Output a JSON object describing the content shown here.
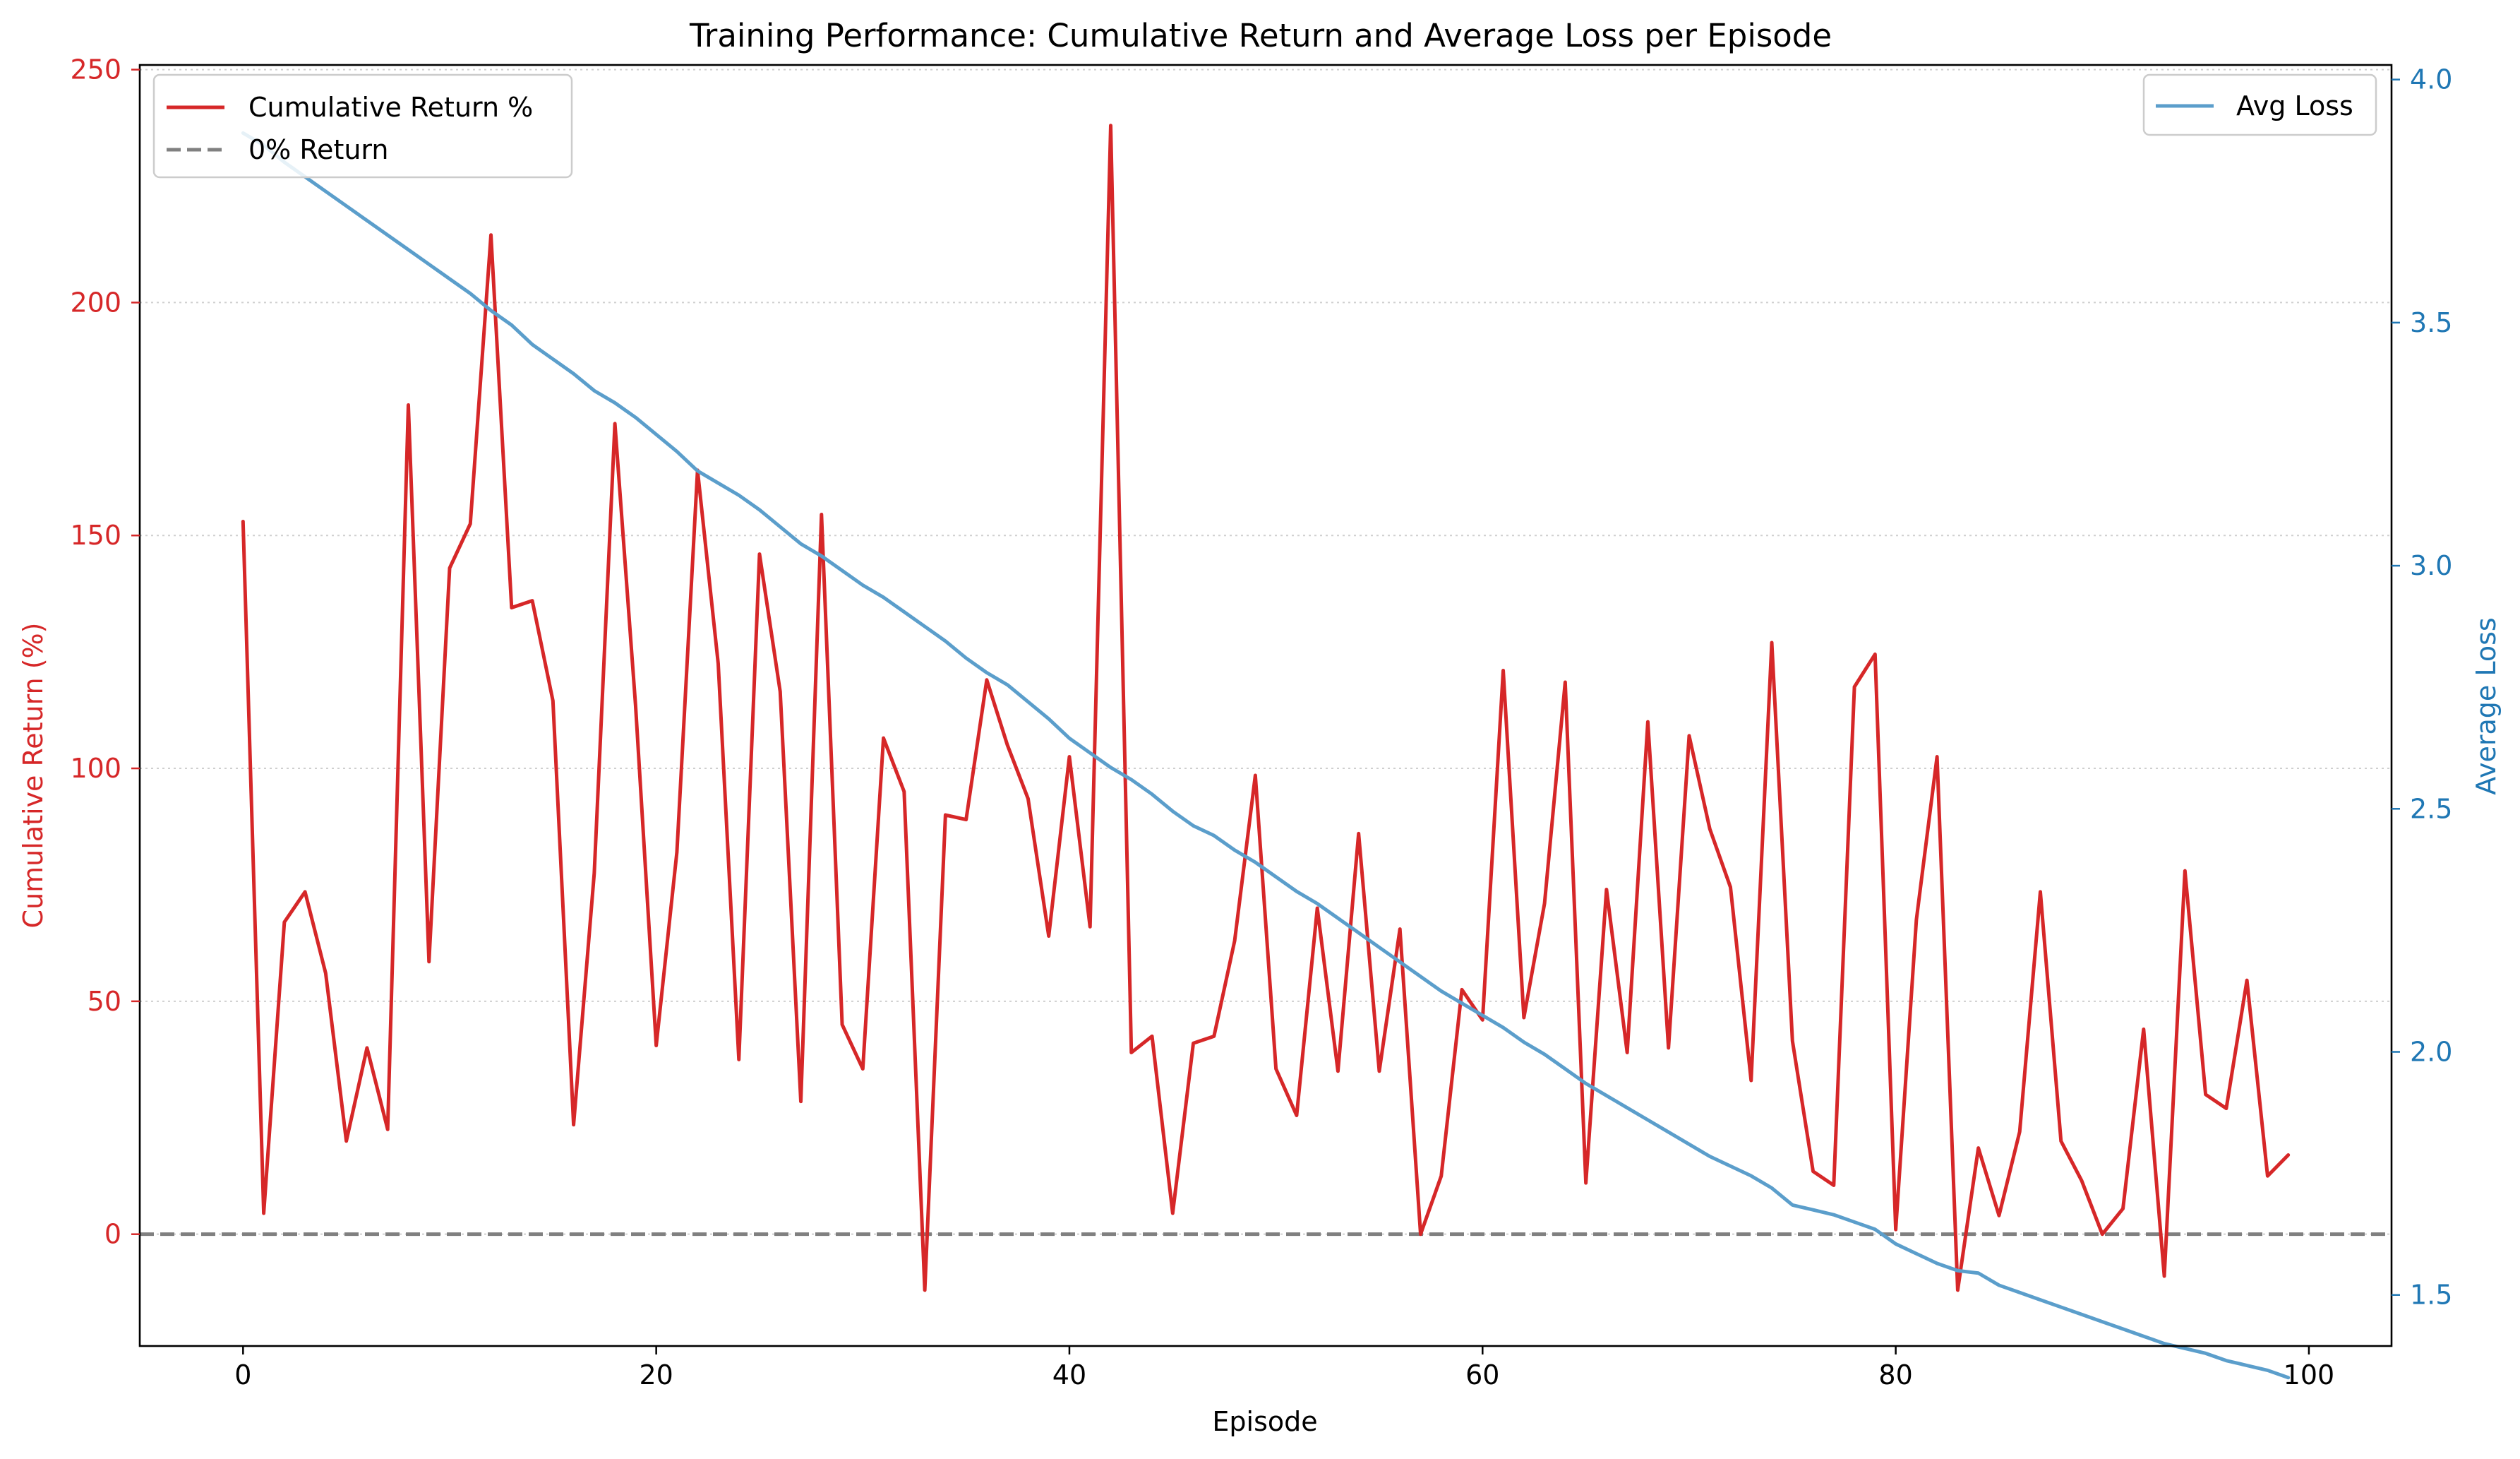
{
  "chart_data": {
    "type": "line",
    "title": "Training Performance: Cumulative Return and Average Loss per Episode",
    "xlabel": "Episode",
    "ylabel_left": "Cumulative Return (%)",
    "ylabel_right": "Average Loss",
    "xlim": [
      -5,
      104
    ],
    "ylim_left": [
      -24,
      251
    ],
    "ylim_right": [
      1.395,
      4.03
    ],
    "x_ticks": [
      0,
      20,
      40,
      60,
      80,
      100
    ],
    "y_ticks_left": [
      0,
      50,
      100,
      150,
      200,
      250
    ],
    "y_ticks_right": [
      1.5,
      2.0,
      2.5,
      3.0,
      3.5,
      4.0
    ],
    "grid": "horizontal dotted",
    "colors": {
      "return": "#d62728",
      "loss": "#5b9ecb",
      "zero_line": "#808080",
      "left_axis": "#d62728",
      "right_axis": "#1f77b4"
    },
    "legend_left": {
      "placement": "top-left",
      "entries": [
        "Cumulative Return %",
        "0% Return"
      ]
    },
    "legend_right": {
      "placement": "top-right",
      "entries": [
        "Avg Loss"
      ]
    },
    "series": [
      {
        "name": "Cumulative Return %",
        "axis": "left",
        "values": [
          153,
          4.5,
          67,
          73.5,
          56,
          20,
          40,
          22.5,
          178,
          58.5,
          143,
          152.5,
          214.5,
          134.5,
          136,
          114.5,
          23.5,
          77.5,
          174,
          113.5,
          40.5,
          82,
          164,
          122.5,
          37.5,
          146,
          116.5,
          28.5,
          154.5,
          45,
          35.5,
          106.5,
          95,
          -12,
          90,
          89,
          119,
          105,
          93.5,
          64,
          102.5,
          66,
          238,
          39,
          42.5,
          4.5,
          41,
          42.5,
          63,
          98.5,
          35.5,
          25.5,
          70,
          35,
          86,
          35,
          65.5,
          0,
          12.5,
          52.5,
          46,
          121,
          46.5,
          71,
          118.5,
          11,
          74,
          39,
          110,
          40,
          107,
          87,
          74.5,
          33,
          127,
          41.5,
          13.5,
          10.5,
          117.5,
          124.5,
          1,
          67.5,
          102.5,
          -12,
          18.5,
          4,
          22,
          73.5,
          20,
          11.5,
          0,
          5.5,
          44,
          -9,
          78,
          30,
          27,
          54.5,
          12.5,
          17
        ]
      },
      {
        "name": "Avg Loss",
        "axis": "right",
        "values": [
          3.89,
          3.865,
          3.83,
          3.8,
          3.77,
          3.74,
          3.71,
          3.68,
          3.65,
          3.62,
          3.59,
          3.56,
          3.525,
          3.495,
          3.455,
          3.425,
          3.395,
          3.36,
          3.335,
          3.305,
          3.27,
          3.235,
          3.195,
          3.17,
          3.145,
          3.115,
          3.08,
          3.045,
          3.02,
          2.99,
          2.96,
          2.935,
          2.905,
          2.875,
          2.845,
          2.81,
          2.78,
          2.755,
          2.72,
          2.685,
          2.645,
          2.615,
          2.585,
          2.56,
          2.53,
          2.495,
          2.465,
          2.445,
          2.415,
          2.39,
          2.36,
          2.33,
          2.305,
          2.275,
          2.245,
          2.215,
          2.185,
          2.155,
          2.125,
          2.1,
          2.075,
          2.05,
          2.02,
          1.995,
          1.965,
          1.935,
          1.91,
          1.885,
          1.86,
          1.835,
          1.81,
          1.785,
          1.765,
          1.745,
          1.72,
          1.685,
          1.675,
          1.665,
          1.65,
          1.635,
          1.605,
          1.585,
          1.565,
          1.55,
          1.545,
          1.52,
          1.505,
          1.49,
          1.475,
          1.46,
          1.445,
          1.43,
          1.415,
          1.4,
          1.39,
          1.38,
          1.365,
          1.355,
          1.345,
          1.33
        ]
      },
      {
        "name": "0% Return",
        "axis": "left",
        "constant": 0
      }
    ]
  }
}
